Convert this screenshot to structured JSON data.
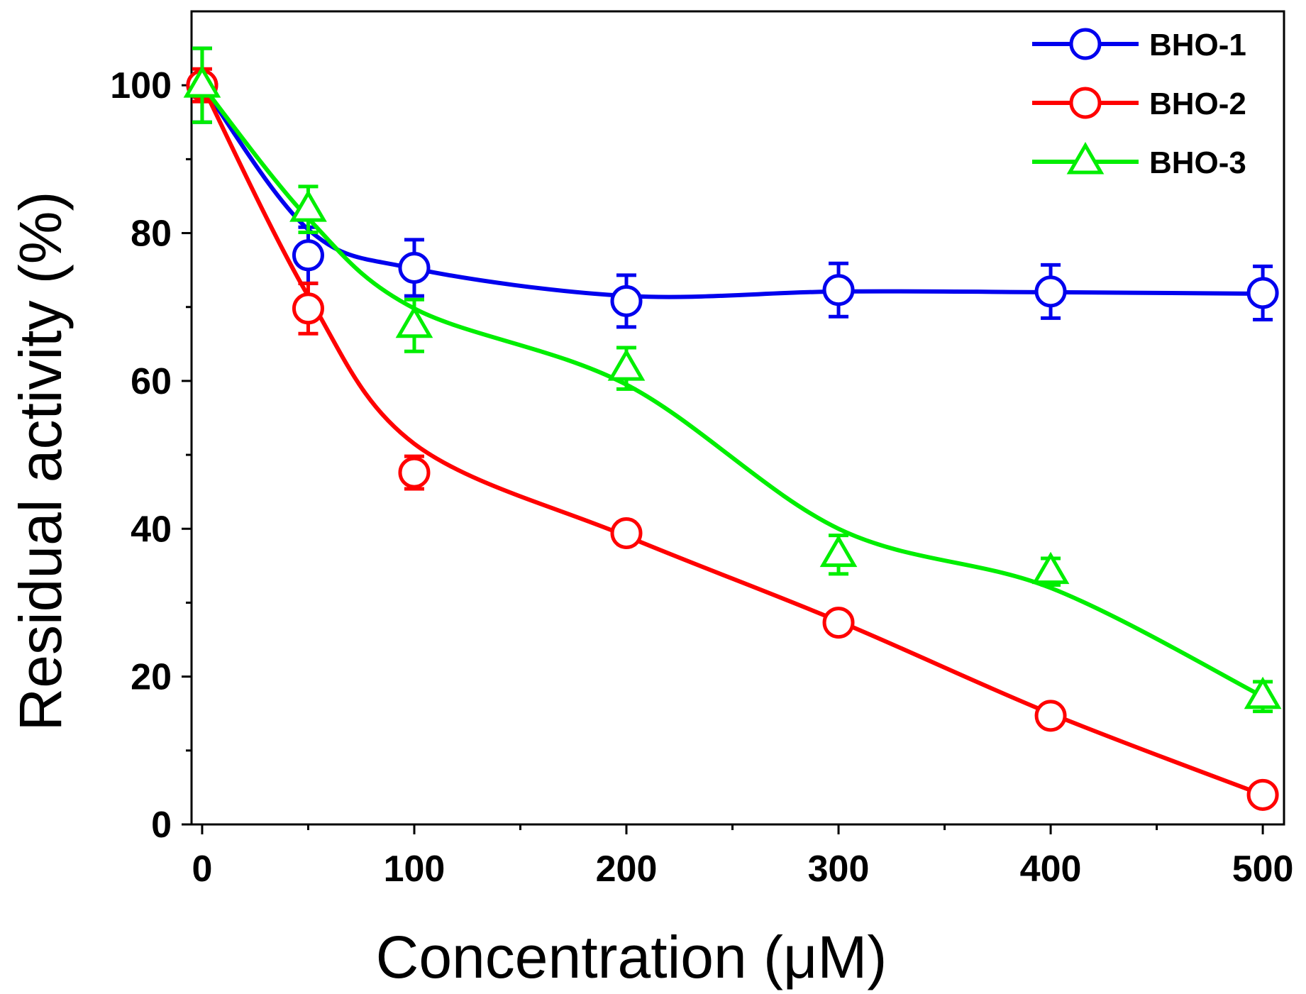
{
  "chart_data": {
    "type": "line",
    "title": "",
    "xlabel": "Concentration (μM)",
    "ylabel": "Residual activity (%)",
    "xlim": [
      -5,
      510
    ],
    "ylim": [
      0,
      110
    ],
    "x_ticks": [
      0,
      100,
      200,
      300,
      400,
      500
    ],
    "x_tick_labels": [
      "0",
      "100",
      "200",
      "300",
      "400",
      "500"
    ],
    "y_ticks": [
      0,
      20,
      40,
      60,
      80,
      100
    ],
    "y_tick_labels": [
      "0",
      "20",
      "40",
      "60",
      "80",
      "100"
    ],
    "x": [
      0,
      50,
      100,
      200,
      300,
      400,
      500
    ],
    "legend_position": "top-right",
    "grid": false,
    "series": [
      {
        "name": "BHO-1",
        "color": "#0000ee",
        "marker": "circle",
        "points": [
          100,
          77,
          75.3,
          70.8,
          72.3,
          72.1,
          71.9
        ],
        "errors": [
          5,
          3.8,
          3.8,
          3.5,
          3.6,
          3.6,
          3.6
        ],
        "fit": [
          100,
          80.5,
          75.2,
          71.5,
          72.1,
          72.0,
          71.8
        ]
      },
      {
        "name": "BHO-2",
        "color": "#ff0000",
        "marker": "circle",
        "points": [
          100,
          69.8,
          47.6,
          39.4,
          27.3,
          14.7,
          4.0
        ],
        "errors": [
          2.2,
          3.4,
          2.2,
          1.5,
          0.8,
          0.8,
          0.8
        ],
        "fit": [
          100,
          71.5,
          51.5,
          39.0,
          27.5,
          15.0,
          4.0
        ]
      },
      {
        "name": "BHO-3",
        "color": "#00ee00",
        "marker": "triangle",
        "points": [
          100,
          83.2,
          67.5,
          61.7,
          36.5,
          34.2,
          17.3
        ],
        "errors": [
          5,
          3.1,
          3.5,
          2.8,
          2.6,
          1.8,
          2.0
        ],
        "fit": [
          100,
          82.0,
          69.8,
          59.5,
          40.0,
          32.0,
          17.3
        ]
      }
    ]
  }
}
